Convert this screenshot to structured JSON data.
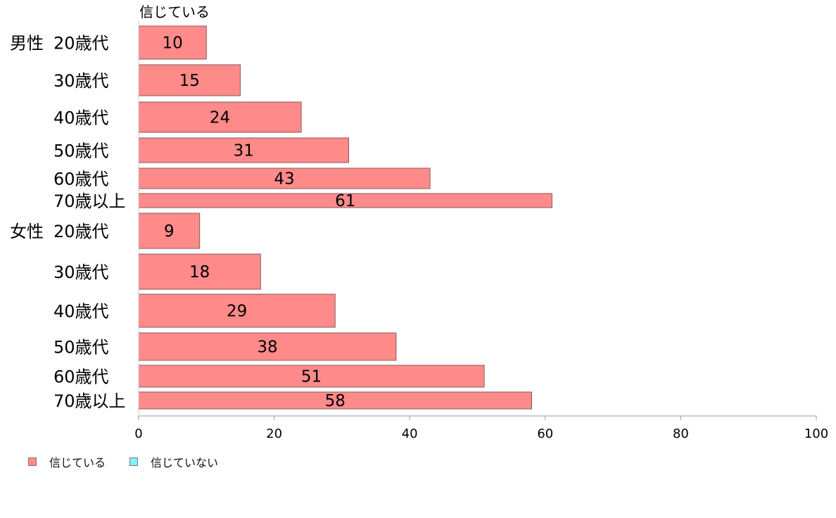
{
  "chart_data": {
    "type": "bar",
    "orientation": "horizontal",
    "series_caption": "信じている",
    "groups": [
      {
        "label": "男性",
        "categories": [
          "20歳代",
          "30歳代",
          "40歳代",
          "50歳代",
          "60歳代",
          "70歳以上"
        ],
        "values": [
          10,
          15,
          24,
          31,
          43,
          61
        ]
      },
      {
        "label": "女性",
        "categories": [
          "20歳代",
          "30歳代",
          "40歳代",
          "50歳代",
          "60歳代",
          "70歳以上"
        ],
        "values": [
          9,
          18,
          29,
          38,
          51,
          58
        ]
      }
    ],
    "xlim": [
      0,
      100
    ],
    "xticks": [
      0,
      20,
      40,
      60,
      80,
      100
    ],
    "grid": false,
    "legend": {
      "position": "bottom-left",
      "entries": [
        {
          "name": "信じている",
          "color": "#ff8a8a"
        },
        {
          "name": "信じていない",
          "color": "#7ff5f5"
        }
      ]
    },
    "bar_color": "#ff8a8a",
    "bar_stroke": "#8a5a5a"
  }
}
